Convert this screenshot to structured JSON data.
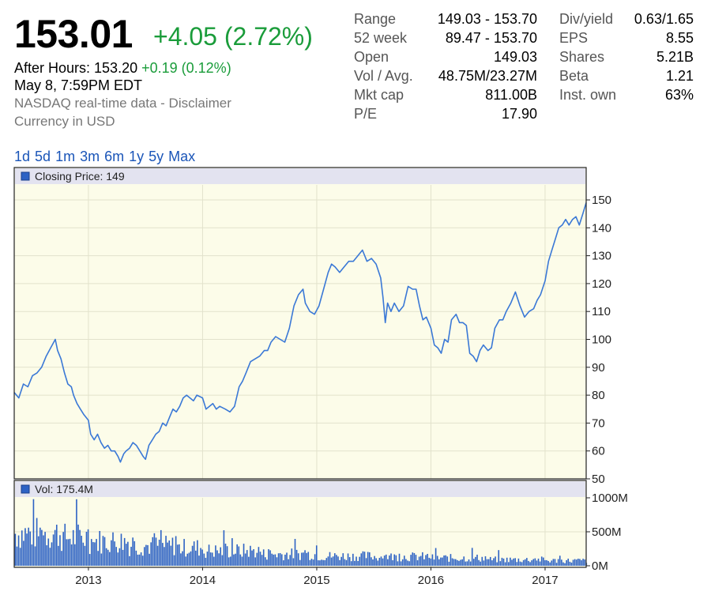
{
  "quote": {
    "price": "153.01",
    "change": "+4.05 (2.72%)",
    "after_hours_label": "After Hours: 153.20",
    "after_hours_change": "+0.19 (0.12%)",
    "datetime": "May 8, 7:59PM EDT",
    "source": "NASDAQ real-time data - Disclaimer",
    "currency": "Currency in USD"
  },
  "stats_left": [
    {
      "label": "Range",
      "value": "149.03 - 153.70"
    },
    {
      "label": "52 week",
      "value": "89.47 - 153.70"
    },
    {
      "label": "Open",
      "value": "149.03"
    },
    {
      "label": "Vol / Avg.",
      "value": "48.75M/23.27M"
    },
    {
      "label": "Mkt cap",
      "value": "811.00B"
    },
    {
      "label": "P/E",
      "value": "17.90"
    }
  ],
  "stats_right": [
    {
      "label": "Div/yield",
      "value": "0.63/1.65"
    },
    {
      "label": "EPS",
      "value": "8.55"
    },
    {
      "label": "Shares",
      "value": "5.21B"
    },
    {
      "label": "Beta",
      "value": "1.21"
    },
    {
      "label": "Inst. own",
      "value": "63%"
    }
  ],
  "ranges": [
    "1d",
    "5d",
    "1m",
    "3m",
    "6m",
    "1y",
    "5y",
    "Max"
  ],
  "colors": {
    "line": "#3a78d6",
    "bar": "#2d62c4",
    "bg": "#fcfce9",
    "legend_bg": "#e3e3f0",
    "green": "#1a9c3a"
  },
  "chart_data": {
    "type": "line",
    "price_legend": "Closing Price: 149",
    "volume_legend": "Vol: 175.4M",
    "x_ticks": [
      "2013",
      "2014",
      "2015",
      "2016",
      "2017"
    ],
    "price_ticks": [
      "150",
      "140",
      "130",
      "120",
      "110",
      "100",
      "90",
      "80",
      "70",
      "60",
      "50"
    ],
    "volume_ticks": [
      "1000M",
      "500M",
      "0M"
    ],
    "ylim": [
      50,
      150
    ],
    "xlim": [
      2012.35,
      2017.36
    ],
    "volume_max": 1000,
    "grid": true,
    "price_series": [
      [
        2012.35,
        81
      ],
      [
        2012.39,
        79
      ],
      [
        2012.43,
        84
      ],
      [
        2012.47,
        83
      ],
      [
        2012.51,
        87
      ],
      [
        2012.55,
        88
      ],
      [
        2012.59,
        90
      ],
      [
        2012.63,
        94
      ],
      [
        2012.67,
        97
      ],
      [
        2012.71,
        100
      ],
      [
        2012.73,
        96
      ],
      [
        2012.76,
        93
      ],
      [
        2012.79,
        88
      ],
      [
        2012.82,
        84
      ],
      [
        2012.85,
        83
      ],
      [
        2012.87,
        80
      ],
      [
        2012.9,
        77
      ],
      [
        2012.93,
        75
      ],
      [
        2012.96,
        73
      ],
      [
        2013.0,
        71
      ],
      [
        2013.02,
        66
      ],
      [
        2013.05,
        64
      ],
      [
        2013.08,
        66
      ],
      [
        2013.11,
        63
      ],
      [
        2013.14,
        61
      ],
      [
        2013.17,
        62
      ],
      [
        2013.2,
        60
      ],
      [
        2013.23,
        60
      ],
      [
        2013.26,
        58
      ],
      [
        2013.28,
        56
      ],
      [
        2013.31,
        59
      ],
      [
        2013.33,
        60
      ],
      [
        2013.36,
        61
      ],
      [
        2013.39,
        63
      ],
      [
        2013.42,
        62
      ],
      [
        2013.45,
        60
      ],
      [
        2013.48,
        58
      ],
      [
        2013.5,
        57
      ],
      [
        2013.53,
        62
      ],
      [
        2013.56,
        64
      ],
      [
        2013.59,
        66
      ],
      [
        2013.62,
        67
      ],
      [
        2013.65,
        70
      ],
      [
        2013.68,
        69
      ],
      [
        2013.71,
        72
      ],
      [
        2013.74,
        75
      ],
      [
        2013.77,
        74
      ],
      [
        2013.8,
        76
      ],
      [
        2013.83,
        79
      ],
      [
        2013.86,
        80
      ],
      [
        2013.89,
        79
      ],
      [
        2013.92,
        78
      ],
      [
        2013.95,
        80
      ],
      [
        2014.0,
        79
      ],
      [
        2014.03,
        75
      ],
      [
        2014.06,
        76
      ],
      [
        2014.09,
        77
      ],
      [
        2014.12,
        75
      ],
      [
        2014.15,
        76
      ],
      [
        2014.2,
        75
      ],
      [
        2014.24,
        74
      ],
      [
        2014.28,
        76
      ],
      [
        2014.32,
        83
      ],
      [
        2014.35,
        85
      ],
      [
        2014.38,
        88
      ],
      [
        2014.42,
        92
      ],
      [
        2014.46,
        93
      ],
      [
        2014.5,
        94
      ],
      [
        2014.54,
        96
      ],
      [
        2014.57,
        96
      ],
      [
        2014.6,
        99
      ],
      [
        2014.64,
        101
      ],
      [
        2014.68,
        100
      ],
      [
        2014.72,
        99
      ],
      [
        2014.76,
        104
      ],
      [
        2014.8,
        112
      ],
      [
        2014.84,
        116
      ],
      [
        2014.88,
        118
      ],
      [
        2014.9,
        113
      ],
      [
        2014.94,
        110
      ],
      [
        2014.98,
        109
      ],
      [
        2015.02,
        112
      ],
      [
        2015.06,
        118
      ],
      [
        2015.1,
        124
      ],
      [
        2015.13,
        127
      ],
      [
        2015.16,
        126
      ],
      [
        2015.2,
        124
      ],
      [
        2015.24,
        126
      ],
      [
        2015.28,
        128
      ],
      [
        2015.32,
        128
      ],
      [
        2015.36,
        130
      ],
      [
        2015.4,
        132
      ],
      [
        2015.44,
        128
      ],
      [
        2015.48,
        129
      ],
      [
        2015.52,
        127
      ],
      [
        2015.56,
        122
      ],
      [
        2015.58,
        115
      ],
      [
        2015.6,
        106
      ],
      [
        2015.62,
        113
      ],
      [
        2015.65,
        110
      ],
      [
        2015.68,
        113
      ],
      [
        2015.72,
        110
      ],
      [
        2015.76,
        112
      ],
      [
        2015.8,
        119
      ],
      [
        2015.84,
        118
      ],
      [
        2015.87,
        118
      ],
      [
        2015.9,
        112
      ],
      [
        2015.93,
        107
      ],
      [
        2015.96,
        108
      ],
      [
        2016.0,
        104
      ],
      [
        2016.03,
        98
      ],
      [
        2016.06,
        97
      ],
      [
        2016.09,
        95
      ],
      [
        2016.12,
        100
      ],
      [
        2016.15,
        99
      ],
      [
        2016.18,
        107
      ],
      [
        2016.22,
        109
      ],
      [
        2016.25,
        106
      ],
      [
        2016.28,
        106
      ],
      [
        2016.31,
        105
      ],
      [
        2016.34,
        95
      ],
      [
        2016.37,
        94
      ],
      [
        2016.4,
        92
      ],
      [
        2016.43,
        96
      ],
      [
        2016.46,
        98
      ],
      [
        2016.5,
        96
      ],
      [
        2016.53,
        97
      ],
      [
        2016.56,
        104
      ],
      [
        2016.6,
        107
      ],
      [
        2016.63,
        107
      ],
      [
        2016.66,
        110
      ],
      [
        2016.7,
        113
      ],
      [
        2016.74,
        117
      ],
      [
        2016.78,
        112
      ],
      [
        2016.82,
        108
      ],
      [
        2016.86,
        110
      ],
      [
        2016.9,
        111
      ],
      [
        2016.93,
        114
      ],
      [
        2016.96,
        116
      ],
      [
        2017.0,
        121
      ],
      [
        2017.03,
        128
      ],
      [
        2017.06,
        132
      ],
      [
        2017.09,
        136
      ],
      [
        2017.12,
        140
      ],
      [
        2017.15,
        141
      ],
      [
        2017.18,
        143
      ],
      [
        2017.21,
        141
      ],
      [
        2017.24,
        143
      ],
      [
        2017.27,
        144
      ],
      [
        2017.3,
        141
      ],
      [
        2017.33,
        145
      ],
      [
        2017.36,
        149
      ]
    ],
    "volume_period": [
      [
        2012.35,
        2012.75,
        500
      ],
      [
        2012.75,
        2013.0,
        440
      ],
      [
        2013.0,
        2013.35,
        380
      ],
      [
        2013.35,
        2013.75,
        310
      ],
      [
        2013.75,
        2014.0,
        280
      ],
      [
        2014.0,
        2014.5,
        230
      ],
      [
        2014.5,
        2015.0,
        180
      ],
      [
        2015.0,
        2015.5,
        150
      ],
      [
        2015.5,
        2016.0,
        140
      ],
      [
        2016.0,
        2016.5,
        120
      ],
      [
        2016.5,
        2017.0,
        95
      ],
      [
        2017.0,
        2017.37,
        80
      ]
    ]
  }
}
